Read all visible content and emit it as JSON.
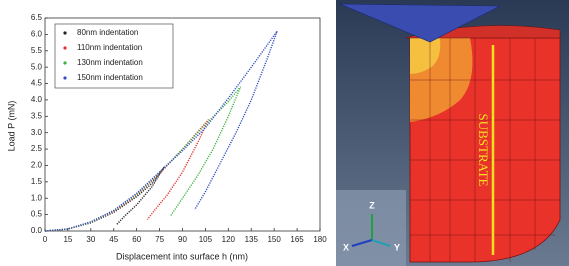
{
  "chart_data": {
    "type": "line",
    "xlabel": "Displacement into surface h (nm)",
    "ylabel": "Load P (mN)",
    "xlim": [
      0,
      180
    ],
    "xticks": [
      0,
      15,
      30,
      45,
      60,
      75,
      90,
      105,
      120,
      135,
      150,
      165,
      180
    ],
    "ylim": [
      0,
      6.5
    ],
    "yticks": [
      {
        "value": 0,
        "label": "0.0"
      },
      {
        "value": 0.5,
        "label": "0.5"
      },
      {
        "value": 1,
        "label": "1.0"
      },
      {
        "value": 1.5,
        "label": "1.5"
      },
      {
        "value": 2,
        "label": "2.0"
      },
      {
        "value": 2.5,
        "label": "2.5"
      },
      {
        "value": 3,
        "label": "3.0"
      },
      {
        "value": 3.5,
        "label": "3.5"
      },
      {
        "value": 4,
        "label": "4.0"
      },
      {
        "value": 4.5,
        "label": "4.5"
      },
      {
        "value": 5,
        "label": "5.0"
      },
      {
        "value": 5.5,
        "label": "5.5"
      },
      {
        "value": 6,
        "label": "6.0"
      },
      {
        "value": 6.5,
        "label": "6.5"
      }
    ],
    "legend": "upper left",
    "series": [
      {
        "name": "80nm indentation",
        "color": "#222222",
        "x": [
          0,
          15,
          30,
          45,
          60,
          70,
          78,
          70,
          60,
          52,
          47
        ],
        "values": [
          0,
          0.06,
          0.25,
          0.57,
          1.05,
          1.45,
          1.95,
          1.35,
          0.8,
          0.45,
          0.2
        ]
      },
      {
        "name": "110nm indentation",
        "color": "#e03030",
        "x": [
          0,
          15,
          30,
          45,
          60,
          75,
          90,
          107,
          100,
          90,
          80,
          72,
          67
        ],
        "values": [
          0,
          0.06,
          0.27,
          0.6,
          1.1,
          1.75,
          2.5,
          3.4,
          2.7,
          1.8,
          1.1,
          0.65,
          0.35
        ]
      },
      {
        "name": "130nm indentation",
        "color": "#40b040",
        "x": [
          0,
          15,
          30,
          45,
          60,
          75,
          90,
          105,
          120,
          128,
          120,
          110,
          100,
          90,
          82
        ],
        "values": [
          0,
          0.06,
          0.27,
          0.62,
          1.12,
          1.78,
          2.5,
          3.25,
          3.95,
          4.4,
          3.5,
          2.5,
          1.7,
          1.0,
          0.45
        ]
      },
      {
        "name": "150nm indentation",
        "color": "#3050c0",
        "x": [
          0,
          15,
          30,
          45,
          60,
          75,
          90,
          105,
          120,
          135,
          152,
          145,
          135,
          125,
          115,
          105,
          98
        ],
        "values": [
          0,
          0.06,
          0.28,
          0.63,
          1.15,
          1.8,
          2.45,
          3.15,
          4.05,
          5.0,
          6.1,
          5.2,
          4.0,
          3.0,
          2.1,
          1.2,
          0.65
        ]
      }
    ]
  },
  "image_labels": {
    "substrate": "SUBSTRATE",
    "triad": [
      "Z",
      "X",
      "Y"
    ]
  }
}
